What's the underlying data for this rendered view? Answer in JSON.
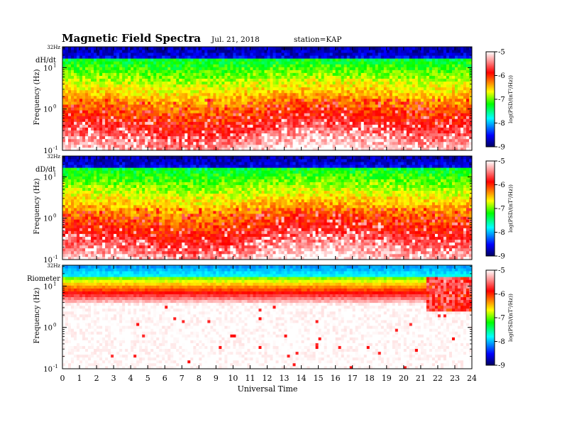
{
  "header": {
    "title": "Magnetic  Field  Spectra",
    "date": "Jul.  21,  2018",
    "station": "station=KAP"
  },
  "colors": {
    "colormap": [
      "#000080",
      "#0000ff",
      "#00ffff",
      "#00ff00",
      "#ffff00",
      "#ff0000",
      "#ffffff"
    ]
  },
  "chart_data": [
    {
      "type": "heatmap",
      "panel_label": "dH/dt",
      "ylabel": "Frequency  (Hz)",
      "y_top_label": "32Hz",
      "y_scale": "log",
      "ylim": [
        0.1,
        32
      ],
      "y_ticks": [
        {
          "base": "10",
          "exp": "1",
          "value": 10
        },
        {
          "base": "10",
          "exp": "0",
          "value": 1
        },
        {
          "base": "10",
          "exp": "-1",
          "value": 0.1
        }
      ],
      "x_ticks": [
        "0",
        "1",
        "2",
        "3",
        "4",
        "5",
        "6",
        "7",
        "8",
        "9",
        "10",
        "11",
        "12",
        "13",
        "14",
        "15",
        "16",
        "17",
        "18",
        "19",
        "20",
        "21",
        "22",
        "23",
        "24"
      ],
      "xlim": [
        0,
        24
      ],
      "colorbar": {
        "label": "log(PSD/(nT²/Hz))",
        "ticks": [
          "-5",
          "-6",
          "-7",
          "-8",
          "-9"
        ],
        "range": [
          -9,
          -5
        ]
      }
    },
    {
      "type": "heatmap",
      "panel_label": "dD/dt",
      "ylabel": "Frequency  (Hz)",
      "y_top_label": "32Hz",
      "y_scale": "log",
      "ylim": [
        0.1,
        32
      ],
      "y_ticks": [
        {
          "base": "10",
          "exp": "1",
          "value": 10
        },
        {
          "base": "10",
          "exp": "0",
          "value": 1
        },
        {
          "base": "10",
          "exp": "-1",
          "value": 0.1
        }
      ],
      "x_ticks": [
        "0",
        "1",
        "2",
        "3",
        "4",
        "5",
        "6",
        "7",
        "8",
        "9",
        "10",
        "11",
        "12",
        "13",
        "14",
        "15",
        "16",
        "17",
        "18",
        "19",
        "20",
        "21",
        "22",
        "23",
        "24"
      ],
      "xlim": [
        0,
        24
      ],
      "colorbar": {
        "label": "log(PSD/(nT²/Hz))",
        "ticks": [
          "-5",
          "-6",
          "-7",
          "-8",
          "-9"
        ],
        "range": [
          -9,
          -5
        ]
      }
    },
    {
      "type": "heatmap",
      "panel_label": "Riometer",
      "ylabel": "Frequency  (Hz)",
      "y_top_label": "32Hz",
      "y_scale": "log",
      "ylim": [
        0.1,
        32
      ],
      "y_ticks": [
        {
          "base": "10",
          "exp": "1",
          "value": 10
        },
        {
          "base": "10",
          "exp": "0",
          "value": 1
        },
        {
          "base": "10",
          "exp": "-1",
          "value": 0.1
        }
      ],
      "x_ticks": [
        "0",
        "1",
        "2",
        "3",
        "4",
        "5",
        "6",
        "7",
        "8",
        "9",
        "10",
        "11",
        "12",
        "13",
        "14",
        "15",
        "16",
        "17",
        "18",
        "19",
        "20",
        "21",
        "22",
        "23",
        "24"
      ],
      "xlim": [
        0,
        24
      ],
      "colorbar": {
        "label": "log(PSD/(nT²/Hz))",
        "ticks": [
          "-5",
          "-6",
          "-7",
          "-8",
          "-9"
        ],
        "range": [
          -9,
          -5
        ]
      }
    }
  ],
  "x_axis_label": "Universal  Time"
}
